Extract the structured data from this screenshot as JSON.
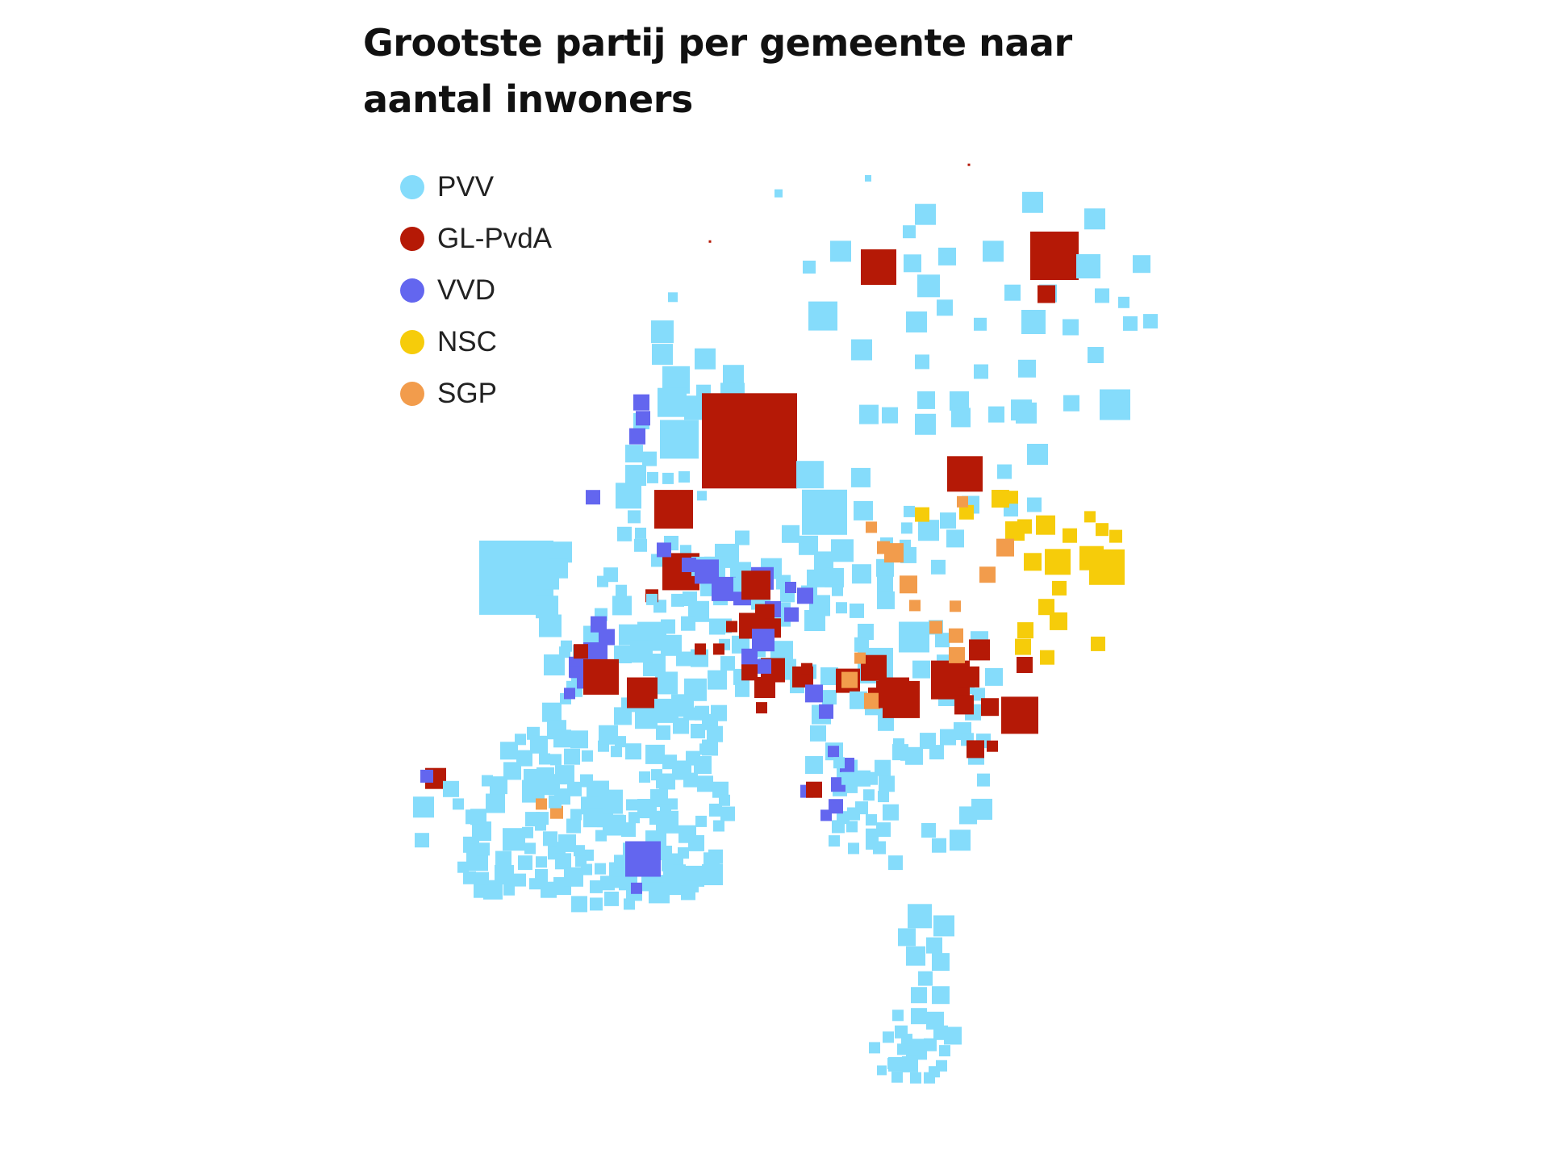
{
  "title": "Grootste partij per gemeente naar aantal inwoners",
  "legend": [
    {
      "label": "PVV",
      "color": "#85dcfb"
    },
    {
      "label": "GL-PvdA",
      "color": "#b51906"
    },
    {
      "label": "VVD",
      "color": "#6366ef"
    },
    {
      "label": "NSC",
      "color": "#f6cc0a"
    },
    {
      "label": "SGP",
      "color": "#f29c4c"
    }
  ]
}
